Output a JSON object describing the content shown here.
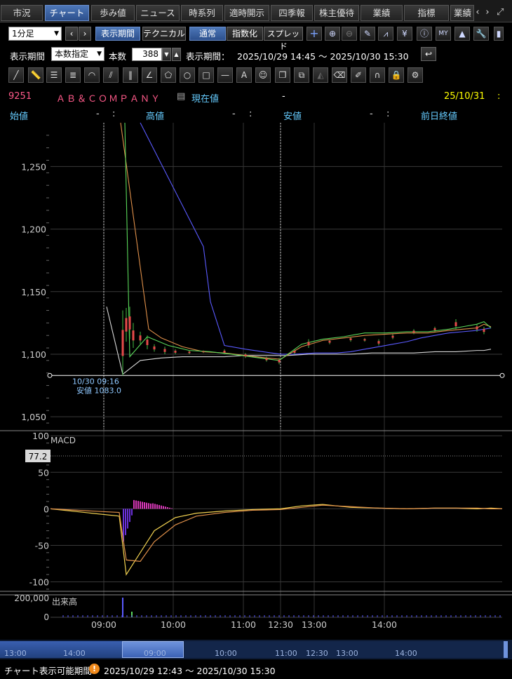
{
  "tabs": [
    "市況",
    "チャート",
    "歩み値",
    "ニュース",
    "時系列",
    "適時開示",
    "四季報",
    "株主優待",
    "業績",
    "指標",
    "業績"
  ],
  "toolbar": {
    "interval": "1分足",
    "period_button": "表示期間",
    "technical_button": "テクニカル",
    "mode_normal": "通常",
    "mode_index": "指数化",
    "mode_spread": "スプレッド"
  },
  "period_row": {
    "label": "表示期間",
    "mode": "本数指定",
    "count_label": "本数",
    "count": "388",
    "range_label": "表示期間：",
    "range_value": "2025/10/29 14:45 ～ 2025/10/30 15:30"
  },
  "quote": {
    "code": "9251",
    "name": "ＡＢ＆ＣＯＭＰＡＮＹ",
    "current_label": "現在値",
    "current_value": "-",
    "date": "25/10/31",
    "date_suffix": ":",
    "open_label": "始値",
    "open_value": "-",
    "open_colon": ":",
    "high_label": "高値",
    "high_value": "-",
    "high_colon": ":",
    "low_label": "安値",
    "low_value": "-",
    "low_colon": ":",
    "prev_label": "前日終値"
  },
  "chart_data": [
    {
      "type": "line",
      "panel": "price",
      "y_ticks": [
        "1,250",
        "1,200",
        "1,150",
        "1,100",
        "1,050"
      ],
      "ylim": [
        1040,
        1285
      ],
      "x_ticks": [
        "09:00",
        "10:00",
        "11:00",
        "12:30",
        "13:00",
        "14:00"
      ],
      "annotation": {
        "time": "10/30 09:16",
        "label": "安値 1083.0",
        "value": 1083.0
      },
      "horizontal_line": 1083,
      "series": [
        {
          "color": "#d8d8d8",
          "values": [
            1138,
            1084,
            1095,
            1097,
            1098,
            1098,
            1098,
            1099,
            1099,
            1099,
            1100,
            1100,
            1100,
            1101,
            1101,
            1101,
            1102,
            1102,
            1103,
            1103,
            1104
          ]
        },
        {
          "color": "#5a5aff",
          "values": [
            1285,
            1186,
            1142,
            1107,
            1104,
            1100,
            1100,
            1101,
            1101,
            1102,
            1104,
            1106,
            1108,
            1110,
            1113,
            1115,
            1117,
            1118,
            1119,
            1120,
            1121
          ]
        },
        {
          "color": "#e0904a",
          "values": [
            1285,
            1120,
            1113,
            1106,
            1102,
            1101,
            1099,
            1097,
            1096,
            1106,
            1111,
            1113,
            1115,
            1116,
            1117,
            1117,
            1119,
            1120,
            1121,
            1124,
            1122
          ]
        },
        {
          "color": "#5ad85a",
          "values": [
            1285,
            1098,
            1114,
            1107,
            1103,
            1102,
            1100,
            1097,
            1095,
            1108,
            1112,
            1114,
            1117,
            1117,
            1118,
            1118,
            1120,
            1122,
            1124,
            1126,
            1121
          ]
        }
      ]
    },
    {
      "type": "line",
      "panel": "MACD",
      "title": "MACD",
      "y_ticks": [
        "100",
        "50",
        "0",
        "-50",
        "-100"
      ],
      "ylim": [
        -112,
        106
      ],
      "current_value": "77.2",
      "series": [
        {
          "color": "#f0d050",
          "values": [
            0,
            -10,
            -90,
            -60,
            -30,
            -12,
            -6,
            -3,
            -1,
            0,
            4,
            6,
            2,
            1,
            0,
            1,
            1,
            0,
            1,
            0
          ]
        },
        {
          "color": "#e0904a",
          "values": [
            0,
            -5,
            -70,
            -72,
            -45,
            -22,
            -10,
            -5,
            -2,
            -1,
            2,
            5,
            3,
            1,
            0,
            1,
            1,
            1,
            0,
            0
          ]
        }
      ]
    },
    {
      "type": "bar",
      "panel": "volume",
      "title": "出来高",
      "y_ticks": [
        "200,000",
        "0"
      ]
    }
  ],
  "scroll_labels": [
    "13:00",
    "14:00",
    "09:00",
    "10:00",
    "11:00",
    "12:30",
    "13:00",
    "14:00"
  ],
  "footer": {
    "label": "チャート表示可能期間",
    "range": "2025/10/29 12:43 ～ 2025/10/30 15:30"
  }
}
